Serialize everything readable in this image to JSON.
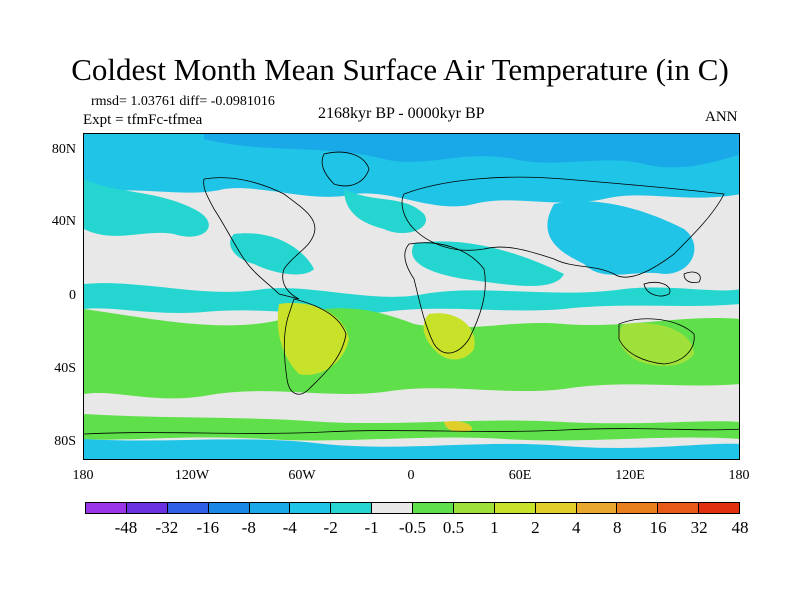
{
  "title": "Coldest Month Mean Surface Air Temperature (in C)",
  "stats": "rmsd= 1.03761 diff= -0.0981016",
  "experiment": "Expt = tfmFc-tfmea",
  "period": "2168kyr BP - 0000kyr BP",
  "season": "ANN",
  "map": {
    "lat_labels": [
      "80N",
      "40N",
      "0",
      "40S",
      "80S"
    ],
    "lon_labels": [
      "180",
      "120W",
      "60W",
      "0",
      "60E",
      "120E",
      "180"
    ],
    "background_color": "#e8e8e8"
  },
  "colorbar": {
    "colors": [
      "#9a36e8",
      "#6a32e0",
      "#2f5fe6",
      "#1a86e6",
      "#19a8e8",
      "#20c4e6",
      "#25d6d0",
      "#e8e8e8",
      "#5fe04a",
      "#a0e03a",
      "#c8e22a",
      "#e0cf2a",
      "#e8a830",
      "#e8801e",
      "#e85a18",
      "#e03010"
    ],
    "labels": [
      "-48",
      "-32",
      "-16",
      "-8",
      "-4",
      "-2",
      "-1",
      "-0.5",
      "0.5",
      "1",
      "2",
      "4",
      "8",
      "16",
      "32",
      "48"
    ]
  }
}
